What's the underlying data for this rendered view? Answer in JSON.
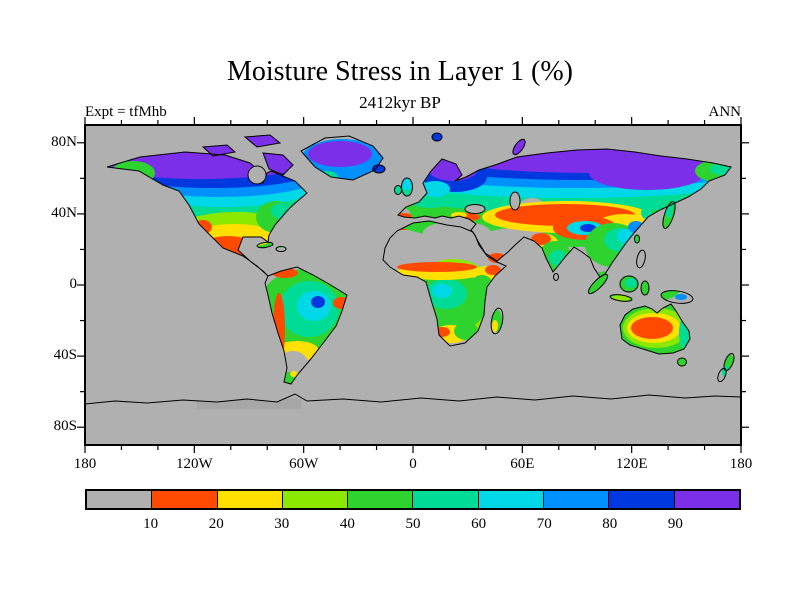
{
  "header": {
    "title": "Moisture Stress in Layer 1 (%)",
    "subtitle": "2412kyr BP",
    "experiment": "Expt = tfMhb",
    "season": "ANN"
  },
  "axes": {
    "x_ticks": [
      {
        "label": "180",
        "lon": -180
      },
      {
        "label": "120W",
        "lon": -120
      },
      {
        "label": "60W",
        "lon": -60
      },
      {
        "label": "0",
        "lon": 0
      },
      {
        "label": "60E",
        "lon": 60
      },
      {
        "label": "120E",
        "lon": 120
      },
      {
        "label": "180",
        "lon": 180
      }
    ],
    "y_ticks": [
      {
        "label": "80N",
        "lat": 80
      },
      {
        "label": "40N",
        "lat": 40
      },
      {
        "label": "0",
        "lat": 0
      },
      {
        "label": "40S",
        "lat": -40
      },
      {
        "label": "80S",
        "lat": -80
      }
    ]
  },
  "colorbar": {
    "levels": [
      10,
      20,
      30,
      40,
      50,
      60,
      70,
      80,
      90
    ],
    "colors": [
      "#b0b0b0",
      "#ff4a00",
      "#ffe000",
      "#8ce800",
      "#2fd32f",
      "#00dc96",
      "#00d8e8",
      "#0090ff",
      "#0038e0",
      "#7c2fe8"
    ],
    "units": "%"
  },
  "chart_data": {
    "type": "heatmap",
    "title": "Moisture Stress in Layer 1 (%)",
    "subtitle": "2412kyr BP",
    "experiment": "Expt = tfMhb",
    "season": "ANN",
    "projection": "equirectangular world map with coastlines",
    "lon_range": [
      -180,
      180
    ],
    "lat_range": [
      -90,
      90
    ],
    "x_tick_labels": [
      "180",
      "120W",
      "60W",
      "0",
      "60E",
      "120E",
      "180"
    ],
    "y_tick_labels": [
      "80N",
      "40N",
      "0",
      "40S",
      "80S"
    ],
    "value_bins_pct": [
      "<10",
      "10-20",
      "20-30",
      "30-40",
      "40-50",
      "50-60",
      "60-70",
      "70-80",
      "80-90",
      ">90"
    ],
    "bin_colors": [
      "#b0b0b0",
      "#ff4a00",
      "#ffe000",
      "#8ce800",
      "#2fd32f",
      "#00dc96",
      "#00d8e8",
      "#0090ff",
      "#0038e0",
      "#7c2fe8"
    ],
    "regions_approx": [
      {
        "region": "Arctic coasts of North America and Siberia",
        "moisture_stress_pct": "80-100 (blue to purple)"
      },
      {
        "region": "Greenland",
        "moisture_stress_pct": "70-100 (blue/purple, cyan fringe south)"
      },
      {
        "region": "Scandinavia / northern Europe",
        "moisture_stress_pct": "70-100"
      },
      {
        "region": "Central and eastern United States",
        "moisture_stress_pct": "40-60 (green)"
      },
      {
        "region": "Southwest US and Mexico",
        "moisture_stress_pct": "10-30 (orange/yellow)"
      },
      {
        "region": "Amazon basin",
        "moisture_stress_pct": "50-70 (green with cyan core)"
      },
      {
        "region": "Chile coast",
        "moisture_stress_pct": "10-20 (orange strip)"
      },
      {
        "region": "Patagonia",
        "moisture_stress_pct": "<10 (gray)"
      },
      {
        "region": "Sahara and Arabia",
        "moisture_stress_pct": "<10 (gray)"
      },
      {
        "region": "Sahel band",
        "moisture_stress_pct": "10-30 (orange/yellow band)"
      },
      {
        "region": "Equatorial and southern Africa",
        "moisture_stress_pct": "30-60 (green/cyan)"
      },
      {
        "region": "Central Asia belt near 40N",
        "moisture_stress_pct": "10-20 core ringed by 20-40"
      },
      {
        "region": "Tibetan Plateau",
        "moisture_stress_pct": "60-80 pocket ringed by 10-20"
      },
      {
        "region": "India and Southeast Asia",
        "moisture_stress_pct": "40-60"
      },
      {
        "region": "Siberian interior",
        "moisture_stress_pct": "60-90"
      },
      {
        "region": "Australian interior",
        "moisture_stress_pct": "10-20 ringed by 20-40, green/cyan east coast"
      },
      {
        "region": "Antarctica",
        "moisture_stress_pct": "<10 (gray)"
      }
    ]
  }
}
